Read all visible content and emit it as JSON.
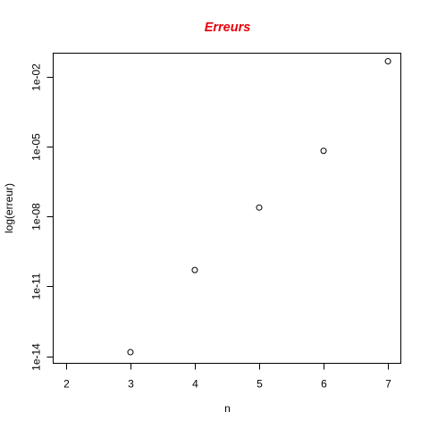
{
  "chart_data": {
    "type": "scatter",
    "title": "Erreurs",
    "title_color": "#e8000b",
    "xlabel": "n",
    "ylabel": "log(erreur)",
    "x_scale": "linear",
    "y_scale": "log",
    "xlim": [
      1.8,
      7.2
    ],
    "ylim": [
      5e-15,
      0.1
    ],
    "x_ticks": [
      2,
      3,
      4,
      5,
      6,
      7
    ],
    "x_tick_labels": [
      "2",
      "3",
      "4",
      "5",
      "6",
      "7"
    ],
    "y_ticks": [
      1e-14,
      1e-11,
      1e-08,
      1e-05,
      0.01
    ],
    "y_tick_labels": [
      "1e-14",
      "1e-11",
      "1e-08",
      "1e-05",
      "1e-02"
    ],
    "grid": false,
    "marker": "open-circle",
    "series": [
      {
        "x": [
          3,
          4,
          5,
          6,
          7
        ],
        "y": [
          1.5e-14,
          5e-11,
          2.4e-08,
          6.5e-06,
          0.045
        ]
      }
    ]
  }
}
